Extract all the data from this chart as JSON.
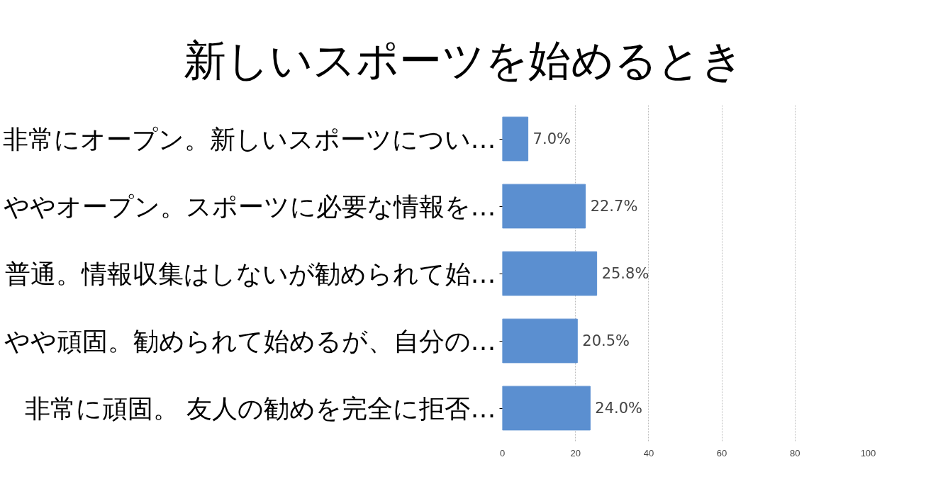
{
  "chart_data": {
    "type": "bar",
    "orientation": "horizontal",
    "title": "新しいスポーツを始めるとき",
    "categories": [
      "非常にオープン。新しいスポーツについ…",
      "ややオープン。スポーツに必要な情報を…",
      "普通。情報収集はしないが勧められて始…",
      "やや頑固。勧められて始めるが、自分の…",
      "非常に頑固。 友人の勧めを完全に拒否…"
    ],
    "values": [
      7.0,
      22.7,
      25.8,
      20.5,
      24.0
    ],
    "value_labels": [
      "7.0%",
      "22.7%",
      "25.8%",
      "20.5%",
      "24.0%"
    ],
    "color": "#5b8fd0",
    "xlim": [
      0,
      100
    ],
    "xticks": [
      0,
      20,
      40,
      60,
      80,
      100
    ],
    "grid": "x",
    "legend": false
  }
}
